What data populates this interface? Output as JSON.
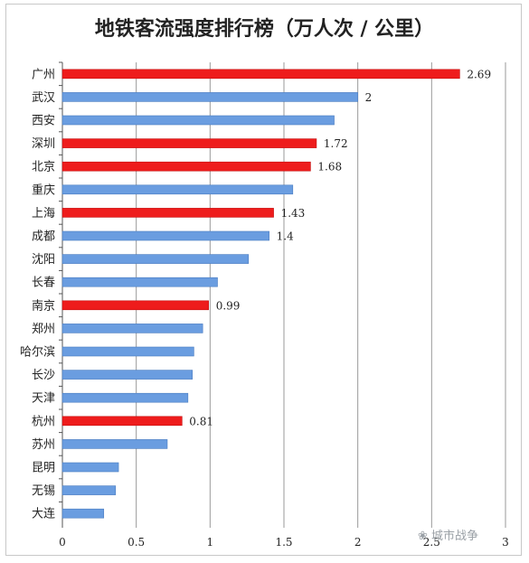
{
  "chart_data": {
    "type": "bar",
    "orientation": "horizontal",
    "title": "地铁客流强度排行榜（万人次 / 公里）",
    "xlabel": "",
    "ylabel": "",
    "xlim": [
      0,
      3
    ],
    "xticks": [
      "0",
      "0.5",
      "1",
      "1.5",
      "2",
      "2.5",
      "3"
    ],
    "grid": "vertical",
    "categories": [
      "广州",
      "武汉",
      "西安",
      "深圳",
      "北京",
      "重庆",
      "上海",
      "成都",
      "沈阳",
      "长春",
      "南京",
      "郑州",
      "哈尔滨",
      "长沙",
      "天津",
      "杭州",
      "苏州",
      "昆明",
      "无锡",
      "大连"
    ],
    "values": [
      2.69,
      2,
      1.84,
      1.72,
      1.68,
      1.56,
      1.43,
      1.4,
      1.26,
      1.05,
      0.99,
      0.95,
      0.89,
      0.88,
      0.85,
      0.81,
      0.71,
      0.38,
      0.36,
      0.28
    ],
    "value_labels": [
      "2.69",
      "2",
      "",
      "1.72",
      "1.68",
      "",
      "1.43",
      "1.4",
      "",
      "",
      "0.99",
      "",
      "",
      "",
      "",
      "0.81",
      "",
      "",
      "",
      ""
    ],
    "highlight": [
      true,
      false,
      false,
      true,
      true,
      false,
      true,
      false,
      false,
      false,
      true,
      false,
      false,
      false,
      false,
      true,
      false,
      false,
      false,
      false
    ],
    "colors": {
      "highlight": "#ee1c1c",
      "normal": "#6a9de0"
    }
  },
  "watermark": "城市战争"
}
